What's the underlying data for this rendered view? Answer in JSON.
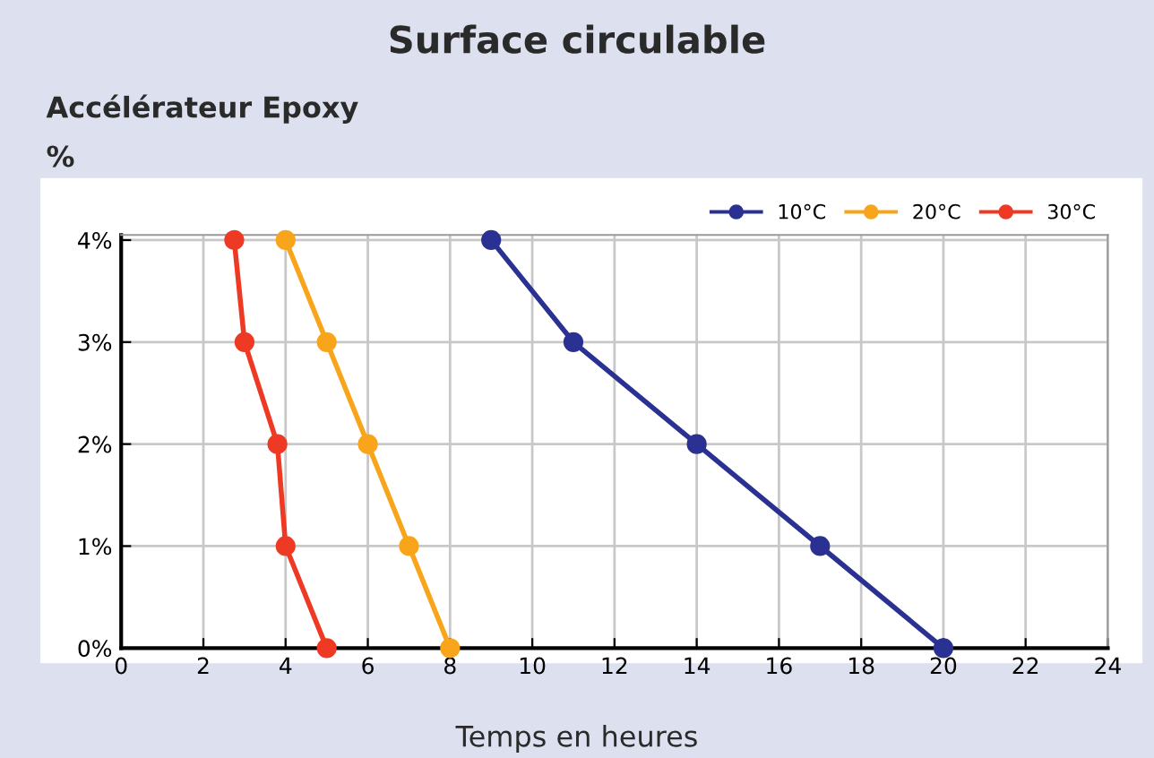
{
  "chart_data": {
    "type": "line",
    "title": "Surface circulable",
    "subtitle": "Accélérateur Epoxy",
    "ylabel": "%",
    "xlabel": "Temps en heures",
    "series": [
      {
        "name": "10°C",
        "color": "#2b3192",
        "x": [
          9,
          11,
          14,
          17,
          20
        ],
        "values": [
          4,
          3,
          2,
          1,
          0
        ]
      },
      {
        "name": "20°C",
        "color": "#f8a51c",
        "x": [
          4,
          5,
          6,
          7,
          8
        ],
        "values": [
          4,
          3,
          2,
          1,
          0
        ]
      },
      {
        "name": "30°C",
        "color": "#ee3a24",
        "x": [
          2.75,
          3,
          3.8,
          4,
          5
        ],
        "values": [
          4,
          3,
          2,
          1,
          0
        ]
      }
    ],
    "xlim": [
      0,
      24
    ],
    "xticks": [
      0,
      2,
      4,
      6,
      8,
      10,
      12,
      14,
      16,
      18,
      20,
      22,
      24
    ],
    "ylim": [
      0,
      4.05
    ],
    "yticks": [
      {
        "value": 0,
        "label": "0%"
      },
      {
        "value": 1,
        "label": "1%"
      },
      {
        "value": 2,
        "label": "2%"
      },
      {
        "value": 3,
        "label": "3%"
      },
      {
        "value": 4,
        "label": "4%"
      }
    ],
    "grid": true,
    "legend": "top right",
    "marker": "circle",
    "line_style": "solid"
  }
}
